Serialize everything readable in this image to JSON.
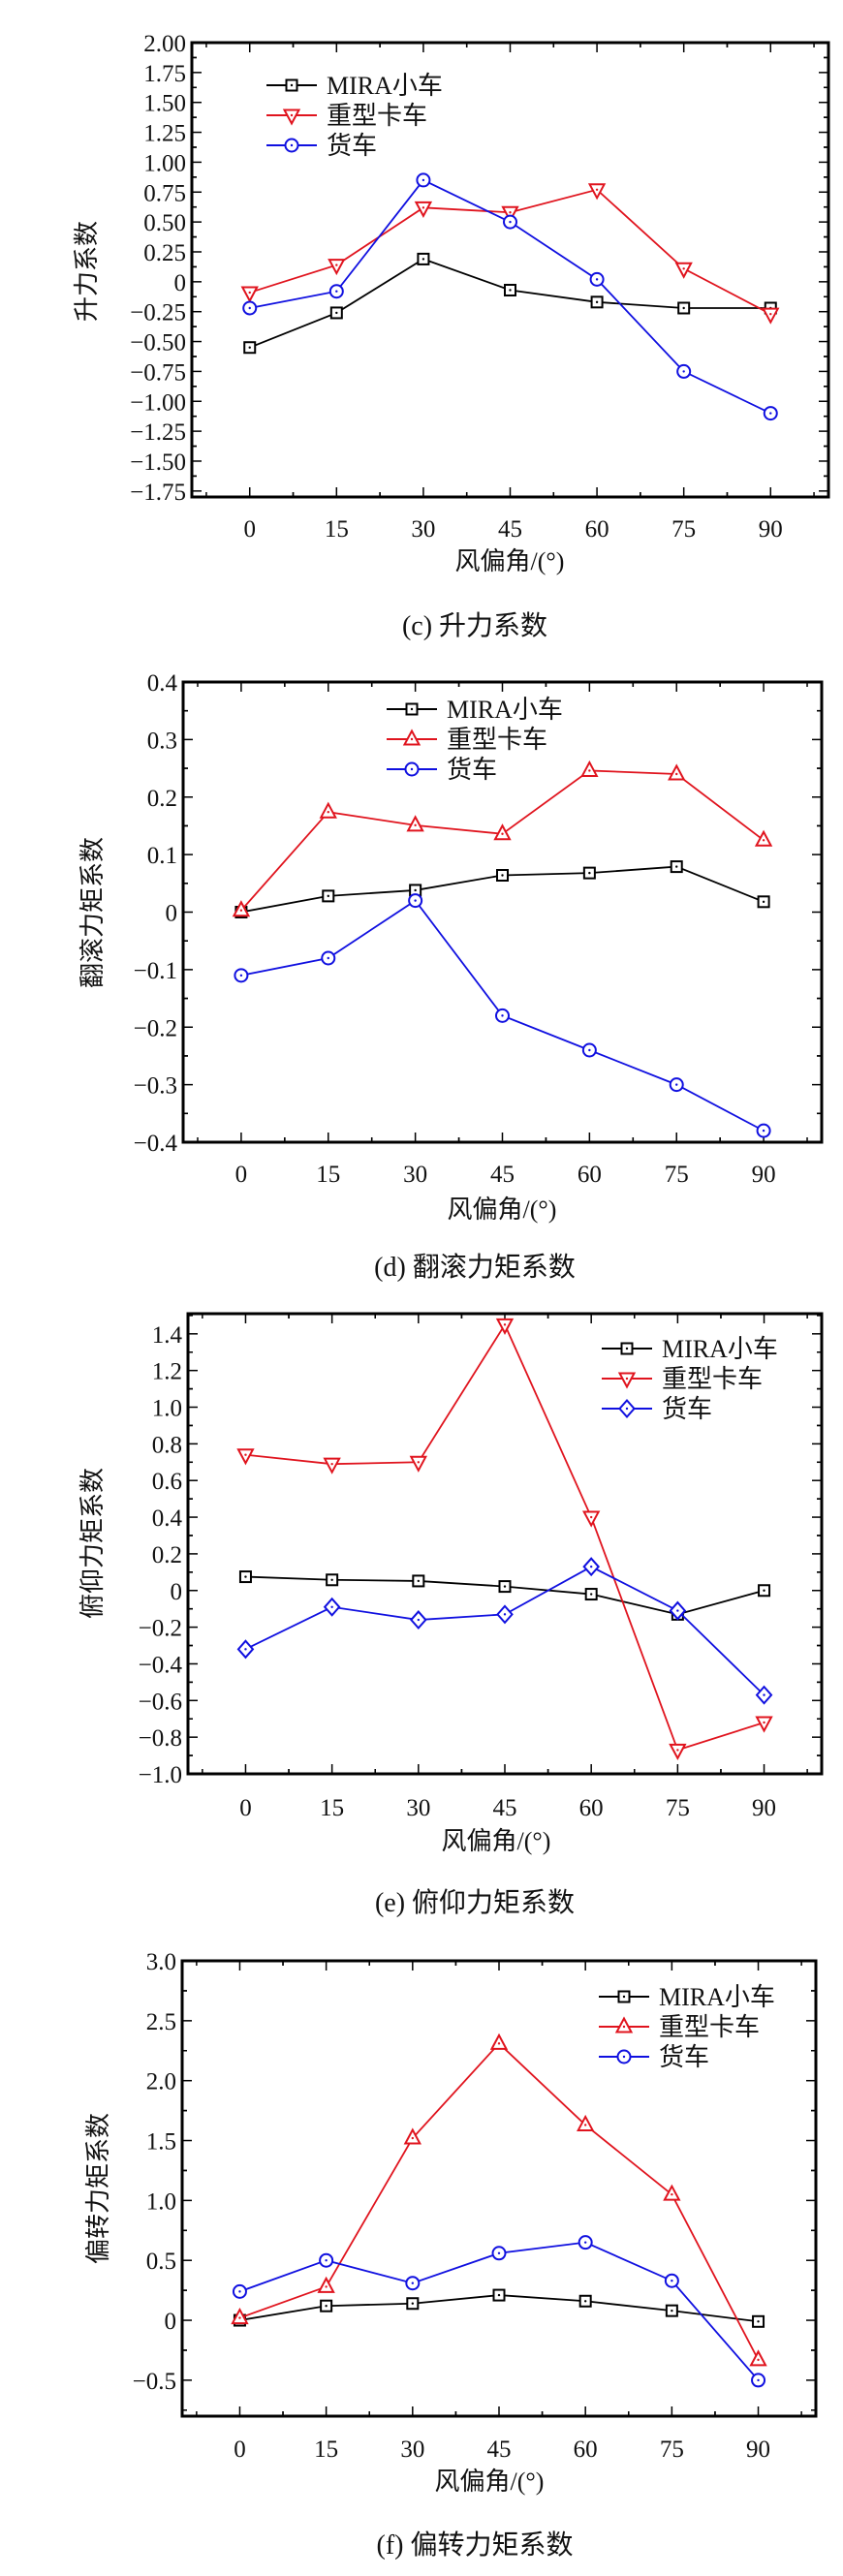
{
  "colors": {
    "mira": "#000000",
    "heavy": "#e0141e",
    "truck": "#1010e0"
  },
  "chart_data": [
    {
      "type": "line",
      "id": "c",
      "caption": "(c)  升力系数",
      "xlabel": "风偏角/(°)",
      "ylabel": "升力系数",
      "x": [
        0,
        15,
        30,
        45,
        60,
        75,
        90
      ],
      "xticks": [
        "0",
        "15",
        "30",
        "45",
        "60",
        "75",
        "90"
      ],
      "xlim": [
        -10,
        100
      ],
      "ylim": [
        -1.8,
        2.0
      ],
      "yticks": [
        2.0,
        1.75,
        1.5,
        1.25,
        1.0,
        0.75,
        0.5,
        0.25,
        0,
        -0.25,
        -0.5,
        -0.75,
        -1.0,
        -1.25,
        -1.5,
        -1.75
      ],
      "ytick_labels": [
        "2.00",
        "1.75",
        "1.50",
        "1.25",
        "1.00",
        "0.75",
        "0.50",
        "0.25",
        "0",
        "−0.25",
        "−0.50",
        "−0.75",
        "−1.00",
        "−1.25",
        "−1.50",
        "−1.75"
      ],
      "legend_position": "top-left",
      "series": [
        {
          "name": "MIRA小车",
          "color_key": "mira",
          "marker": "square",
          "values": [
            -0.55,
            -0.26,
            0.19,
            -0.07,
            -0.17,
            -0.22,
            -0.22
          ]
        },
        {
          "name": "重型卡车",
          "color_key": "heavy",
          "marker": "triangle-down",
          "values": [
            -0.09,
            0.14,
            0.62,
            0.58,
            0.77,
            0.11,
            -0.27
          ]
        },
        {
          "name": "货车",
          "color_key": "truck",
          "marker": "circle",
          "values": [
            -0.22,
            -0.08,
            0.85,
            0.5,
            0.02,
            -0.75,
            -1.1
          ]
        }
      ]
    },
    {
      "type": "line",
      "id": "d",
      "caption": "(d)  翻滚力矩系数",
      "xlabel": "风偏角/(°)",
      "ylabel": "翻滚力矩系数",
      "x": [
        0,
        15,
        30,
        45,
        60,
        75,
        90
      ],
      "xticks": [
        "0",
        "15",
        "30",
        "45",
        "60",
        "75",
        "90"
      ],
      "xlim": [
        -10,
        100
      ],
      "ylim": [
        -0.4,
        0.4
      ],
      "yticks": [
        0.4,
        0.3,
        0.2,
        0.1,
        0,
        -0.1,
        -0.2,
        -0.3,
        -0.4
      ],
      "ytick_labels": [
        "0.4",
        "0.3",
        "0.2",
        "0.1",
        "0",
        "−0.1",
        "−0.2",
        "−0.3",
        "−0.4"
      ],
      "legend_position": "top-center",
      "series": [
        {
          "name": "MIRA小车",
          "color_key": "mira",
          "marker": "square",
          "values": [
            0.0,
            0.028,
            0.038,
            0.064,
            0.068,
            0.079,
            0.018
          ]
        },
        {
          "name": "重型卡车",
          "color_key": "heavy",
          "marker": "triangle-up",
          "values": [
            0.003,
            0.174,
            0.151,
            0.136,
            0.246,
            0.24,
            0.125
          ]
        },
        {
          "name": "货车",
          "color_key": "truck",
          "marker": "circle",
          "values": [
            -0.11,
            -0.08,
            0.02,
            -0.18,
            -0.24,
            -0.3,
            -0.38
          ]
        }
      ]
    },
    {
      "type": "line",
      "id": "e",
      "caption": "(e)  俯仰力矩系数",
      "xlabel": "风偏角/(°)",
      "ylabel": "俯仰力矩系数",
      "x": [
        0,
        15,
        30,
        45,
        60,
        75,
        90
      ],
      "xticks": [
        "0",
        "15",
        "30",
        "45",
        "60",
        "75",
        "90"
      ],
      "xlim": [
        -10,
        100
      ],
      "ylim": [
        -1.0,
        1.51
      ],
      "yticks": [
        1.4,
        1.2,
        1.0,
        0.8,
        0.6,
        0.4,
        0.2,
        0,
        -0.2,
        -0.4,
        -0.6,
        -0.8,
        -1.0
      ],
      "ytick_labels": [
        "1.4",
        "1.2",
        "1.0",
        "0.8",
        "0.6",
        "0.4",
        "0.2",
        "0",
        "−0.2",
        "−0.4",
        "−0.6",
        "−0.8",
        "−1.0"
      ],
      "legend_position": "top-right",
      "series": [
        {
          "name": "MIRA小车",
          "color_key": "mira",
          "marker": "square",
          "values": [
            0.075,
            0.058,
            0.052,
            0.022,
            -0.02,
            -0.13,
            0.0
          ]
        },
        {
          "name": "重型卡车",
          "color_key": "heavy",
          "marker": "triangle-down",
          "values": [
            0.74,
            0.69,
            0.7,
            1.45,
            0.4,
            -0.87,
            -0.72
          ]
        },
        {
          "name": "货车",
          "color_key": "truck",
          "marker": "diamond",
          "values": [
            -0.32,
            -0.09,
            -0.16,
            -0.13,
            0.13,
            -0.11,
            -0.57
          ]
        }
      ]
    },
    {
      "type": "line",
      "id": "f",
      "caption": "(f)  偏转力矩系数",
      "xlabel": "风偏角/(°)",
      "ylabel": "偏转力矩系数",
      "x": [
        0,
        15,
        30,
        45,
        60,
        75,
        90
      ],
      "xticks": [
        "0",
        "15",
        "30",
        "45",
        "60",
        "75",
        "90"
      ],
      "xlim": [
        -10,
        100
      ],
      "ylim": [
        -0.8,
        3.0
      ],
      "yticks": [
        3.0,
        2.5,
        2.0,
        1.5,
        1.0,
        0.5,
        0,
        -0.5
      ],
      "ytick_labels": [
        "3.0",
        "2.5",
        "2.0",
        "1.5",
        "1.0",
        "0.5",
        "0",
        "−0.5"
      ],
      "legend_position": "top-right",
      "series": [
        {
          "name": "MIRA小车",
          "color_key": "mira",
          "marker": "square",
          "values": [
            0.0,
            0.12,
            0.14,
            0.21,
            0.16,
            0.08,
            -0.01
          ]
        },
        {
          "name": "重型卡车",
          "color_key": "heavy",
          "marker": "triangle-up",
          "values": [
            0.02,
            0.28,
            1.52,
            2.31,
            1.63,
            1.05,
            -0.33
          ]
        },
        {
          "name": "货车",
          "color_key": "truck",
          "marker": "circle",
          "values": [
            0.24,
            0.5,
            0.31,
            0.56,
            0.65,
            0.33,
            -0.5
          ]
        }
      ]
    }
  ]
}
